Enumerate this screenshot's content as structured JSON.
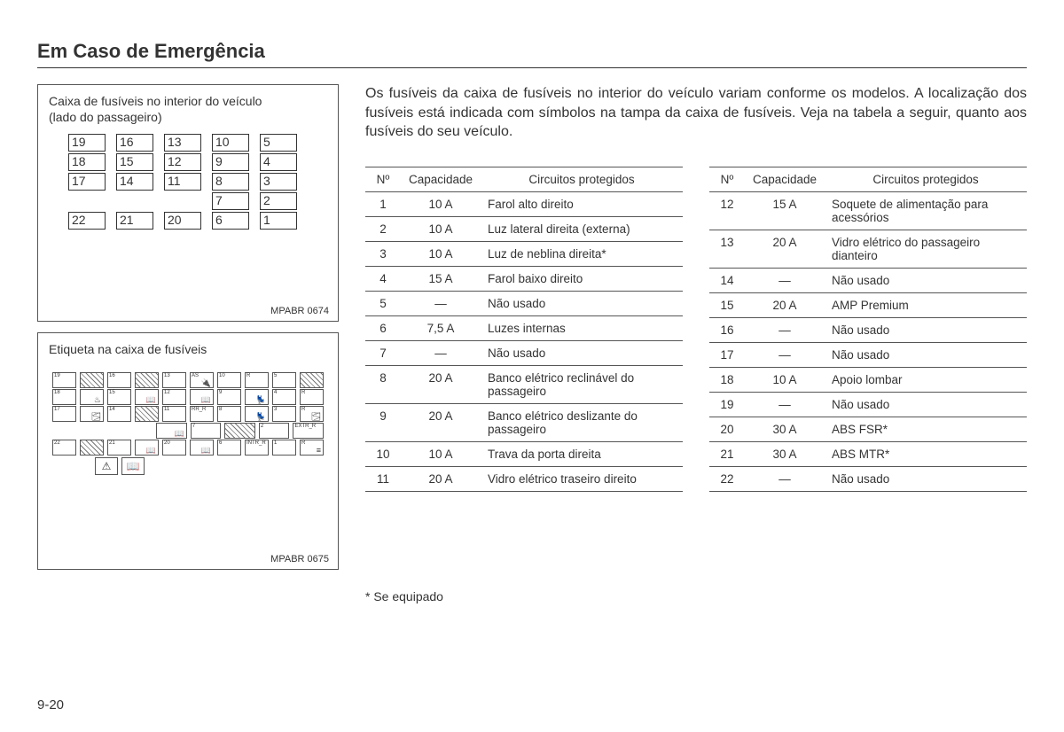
{
  "page": {
    "title": "Em Caso de Emergência",
    "number": "9-20"
  },
  "figure1": {
    "caption_line1": "Caixa de fusíveis no interior do veículo",
    "caption_line2": "(lado do passageiro)",
    "code": "MPABR 0674",
    "rows": [
      [
        "19",
        "",
        "16",
        "",
        "13",
        "",
        "10",
        "",
        "5"
      ],
      [
        "18",
        "",
        "15",
        "",
        "12",
        "",
        "9",
        "",
        "4"
      ],
      [
        "17",
        "",
        "14",
        "",
        "11",
        "",
        "8",
        "",
        "3"
      ],
      [
        "",
        "",
        "",
        "",
        "",
        "",
        "7",
        "",
        "2"
      ],
      [
        "22",
        "",
        "21",
        "",
        "20",
        "",
        "6",
        "",
        "1"
      ]
    ]
  },
  "figure2": {
    "caption": "Etiqueta na caixa de fusíveis",
    "code": "MPABR 0675"
  },
  "intro": "Os fusíveis da caixa de fusíveis no interior do veículo variam conforme os modelos. A localização dos fusíveis está indicada com símbolos na tampa da caixa de fusíveis. Veja na tabela a seguir, quanto aos fusíveis do seu veículo.",
  "table_headers": {
    "n": "Nº",
    "cap": "Capacidade",
    "circ": "Circuitos protegidos"
  },
  "table_left": [
    {
      "n": "1",
      "cap": "10 A",
      "circ": "Farol alto direito"
    },
    {
      "n": "2",
      "cap": "10 A",
      "circ": "Luz lateral direita (externa)"
    },
    {
      "n": "3",
      "cap": "10 A",
      "circ": "Luz de neblina direita*"
    },
    {
      "n": "4",
      "cap": "15 A",
      "circ": "Farol baixo direito"
    },
    {
      "n": "5",
      "cap": "—",
      "circ": "Não usado"
    },
    {
      "n": "6",
      "cap": "7,5 A",
      "circ": "Luzes internas"
    },
    {
      "n": "7",
      "cap": "—",
      "circ": "Não usado"
    },
    {
      "n": "8",
      "cap": "20 A",
      "circ": "Banco elétrico reclinável do passageiro"
    },
    {
      "n": "9",
      "cap": "20 A",
      "circ": "Banco elétrico deslizante do passageiro"
    },
    {
      "n": "10",
      "cap": "10 A",
      "circ": "Trava da porta direita"
    },
    {
      "n": "11",
      "cap": "20 A",
      "circ": "Vidro elétrico traseiro direito"
    }
  ],
  "table_right": [
    {
      "n": "12",
      "cap": "15 A",
      "circ": "Soquete de alimentação para acessórios"
    },
    {
      "n": "13",
      "cap": "20 A",
      "circ": "Vidro elétrico do passageiro dianteiro"
    },
    {
      "n": "14",
      "cap": "—",
      "circ": "Não usado"
    },
    {
      "n": "15",
      "cap": "20 A",
      "circ": "AMP Premium"
    },
    {
      "n": "16",
      "cap": "—",
      "circ": "Não usado"
    },
    {
      "n": "17",
      "cap": "—",
      "circ": "Não usado"
    },
    {
      "n": "18",
      "cap": "10 A",
      "circ": "Apoio lombar"
    },
    {
      "n": "19",
      "cap": "—",
      "circ": "Não usado"
    },
    {
      "n": "20",
      "cap": "30 A",
      "circ": "ABS FSR*"
    },
    {
      "n": "21",
      "cap": "30 A",
      "circ": "ABS MTR*"
    },
    {
      "n": "22",
      "cap": "—",
      "circ": "Não usado"
    }
  ],
  "footnote": "* Se equipado",
  "colors": {
    "text": "#333333",
    "border": "#555555",
    "bg": "#ffffff"
  }
}
